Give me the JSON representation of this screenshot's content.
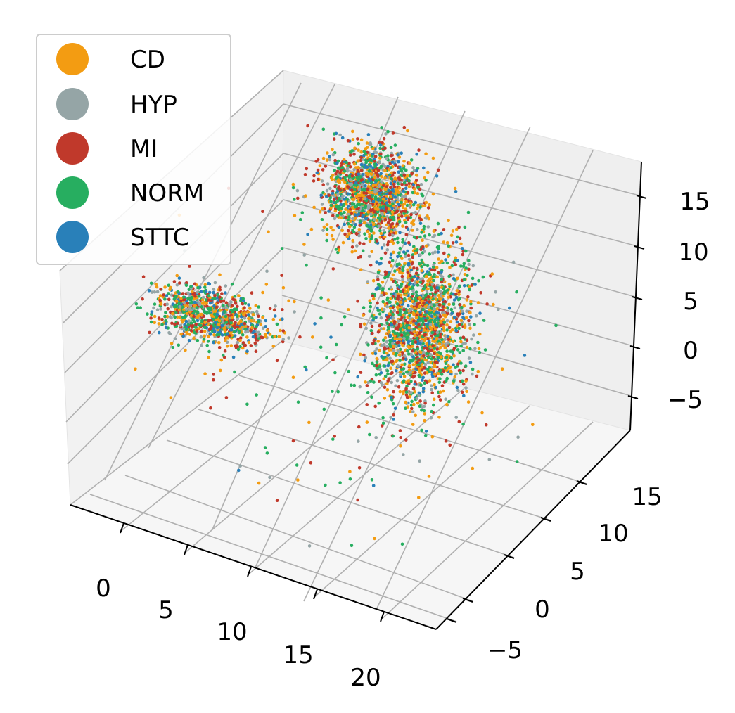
{
  "chart_data": {
    "type": "scatter",
    "projection": "3d",
    "title": "",
    "xlabel": "",
    "ylabel": "",
    "zlabel": "",
    "grid": true,
    "legend_position": "top-left",
    "x_ticks": [
      "0",
      "5",
      "10",
      "15",
      "20"
    ],
    "y_ticks": [
      "−5",
      "0",
      "5",
      "10",
      "15"
    ],
    "z_ticks": [
      "−5",
      "0",
      "5",
      "10",
      "15"
    ],
    "xlim": [
      -4,
      24
    ],
    "ylim": [
      -8,
      18
    ],
    "zlim": [
      -8,
      18
    ],
    "series": [
      {
        "name": "CD",
        "color": "#f39c12"
      },
      {
        "name": "HYP",
        "color": "#95a5a6"
      },
      {
        "name": "MI",
        "color": "#c0392b"
      },
      {
        "name": "NORM",
        "color": "#27ae60"
      },
      {
        "name": "STTC",
        "color": "#2980b9"
      }
    ],
    "clusters": [
      {
        "label_mix": "all",
        "center": [
          7,
          12,
          12
        ],
        "spread": [
          1.7,
          1.4,
          2.0
        ],
        "count": 1400
      },
      {
        "label_mix": "all",
        "center": [
          11,
          12,
          1
        ],
        "spread": [
          1.6,
          1.7,
          3.6
        ],
        "count": 1800
      },
      {
        "label_mix": "all",
        "center": [
          -2,
          7,
          0
        ],
        "spread": [
          2.0,
          1.1,
          0.9
        ],
        "count": 900
      }
    ]
  }
}
